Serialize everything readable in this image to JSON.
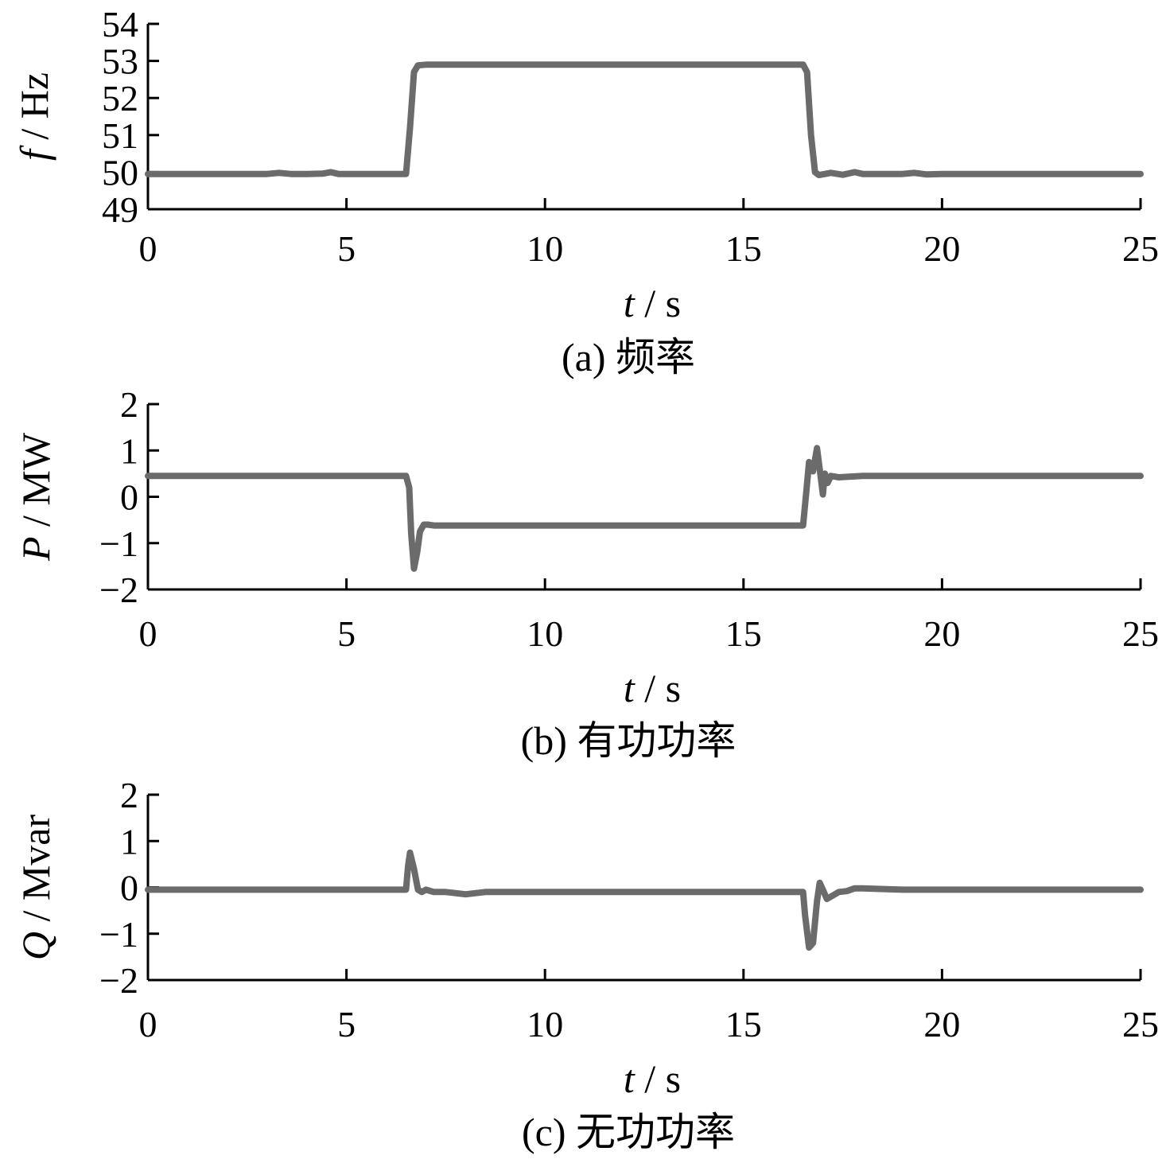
{
  "colors": {
    "line": "#6b6b6b",
    "axis": "#000000",
    "background": "#ffffff"
  },
  "chart_data": [
    {
      "type": "line",
      "panel_id": "a",
      "caption": "(a)  频率",
      "xlabel": {
        "var": "t",
        "unit": " / s"
      },
      "ylabel": {
        "var": "f",
        "unit": " / Hz"
      },
      "xlim": [
        0,
        25
      ],
      "ylim": [
        49,
        54
      ],
      "xticks": [
        0,
        5,
        10,
        15,
        20,
        25
      ],
      "yticks": [
        49,
        50,
        51,
        52,
        53,
        54
      ],
      "grid": false,
      "series": [
        {
          "x": [
            0,
            1,
            2,
            3,
            3.3,
            3.6,
            4,
            4.4,
            4.6,
            4.8,
            5,
            5.5,
            6,
            6.5,
            6.6,
            6.7,
            6.8,
            7.0,
            8,
            10,
            12,
            14,
            15,
            16,
            16.5,
            16.6,
            16.7,
            16.8,
            16.9,
            17.2,
            17.5,
            17.8,
            18,
            19,
            19.3,
            19.6,
            20,
            22,
            24,
            25
          ],
          "y": [
            49.95,
            49.95,
            49.95,
            49.95,
            49.98,
            49.95,
            49.95,
            49.96,
            50.0,
            49.95,
            49.95,
            49.95,
            49.95,
            49.95,
            51.2,
            52.7,
            52.88,
            52.9,
            52.9,
            52.9,
            52.9,
            52.9,
            52.9,
            52.9,
            52.9,
            52.7,
            51.0,
            50.0,
            49.92,
            49.98,
            49.93,
            50.0,
            49.95,
            49.95,
            49.98,
            49.94,
            49.95,
            49.95,
            49.95,
            49.95
          ]
        }
      ]
    },
    {
      "type": "line",
      "panel_id": "b",
      "caption": "(b)  有功功率",
      "xlabel": {
        "var": "t",
        "unit": " / s"
      },
      "ylabel": {
        "var": "P",
        "unit": " / MW"
      },
      "xlim": [
        0,
        25
      ],
      "ylim": [
        -2,
        2
      ],
      "xticks": [
        0,
        5,
        10,
        15,
        20,
        25
      ],
      "yticks": [
        -2,
        -1,
        0,
        1,
        2
      ],
      "grid": false,
      "series": [
        {
          "x": [
            0,
            2,
            4,
            6,
            6.5,
            6.58,
            6.63,
            6.7,
            6.78,
            6.85,
            6.95,
            7.05,
            7.2,
            8,
            10,
            12,
            14,
            16,
            16.5,
            16.58,
            16.65,
            16.75,
            16.85,
            16.92,
            17.0,
            17.05,
            17.12,
            17.2,
            17.4,
            18,
            20,
            22,
            25
          ],
          "y": [
            0.45,
            0.45,
            0.45,
            0.45,
            0.45,
            0.2,
            -0.8,
            -1.55,
            -1.2,
            -0.75,
            -0.6,
            -0.6,
            -0.62,
            -0.62,
            -0.62,
            -0.62,
            -0.62,
            -0.62,
            -0.62,
            0.1,
            0.75,
            0.55,
            1.05,
            0.6,
            0.05,
            0.5,
            0.3,
            0.45,
            0.42,
            0.45,
            0.45,
            0.45,
            0.45
          ]
        }
      ]
    },
    {
      "type": "line",
      "panel_id": "c",
      "caption": "(c)  无功功率",
      "xlabel": {
        "var": "t",
        "unit": " / s"
      },
      "ylabel": {
        "var": "Q",
        "unit": " / Mvar"
      },
      "xlim": [
        0,
        25
      ],
      "ylim": [
        -2,
        2
      ],
      "xticks": [
        0,
        5,
        10,
        15,
        20,
        25
      ],
      "yticks": [
        -2,
        -1,
        0,
        1,
        2
      ],
      "grid": false,
      "series": [
        {
          "x": [
            0,
            2,
            4,
            6,
            6.5,
            6.55,
            6.6,
            6.7,
            6.8,
            6.9,
            7.0,
            7.2,
            7.5,
            8,
            8.5,
            10,
            12,
            14,
            16,
            16.5,
            16.55,
            16.65,
            16.75,
            16.85,
            16.92,
            17.0,
            17.1,
            17.2,
            17.4,
            17.6,
            17.8,
            18,
            19,
            20,
            22,
            25
          ],
          "y": [
            -0.05,
            -0.05,
            -0.05,
            -0.05,
            -0.05,
            0.45,
            0.75,
            0.4,
            -0.05,
            -0.1,
            -0.05,
            -0.1,
            -0.1,
            -0.15,
            -0.1,
            -0.1,
            -0.1,
            -0.1,
            -0.1,
            -0.1,
            -0.6,
            -1.3,
            -1.2,
            -0.3,
            0.1,
            -0.05,
            -0.25,
            -0.2,
            -0.1,
            -0.08,
            -0.02,
            -0.02,
            -0.05,
            -0.05,
            -0.05,
            -0.05
          ]
        }
      ]
    }
  ]
}
